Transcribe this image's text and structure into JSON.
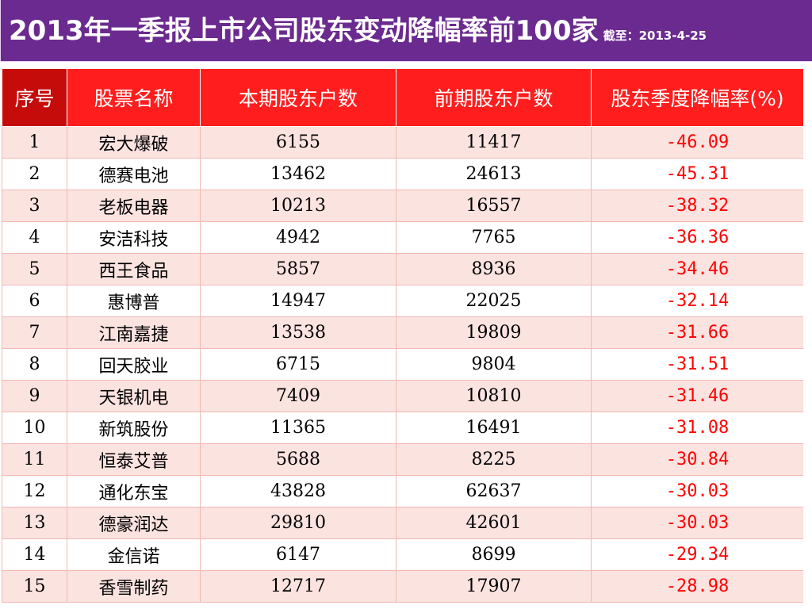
{
  "header": {
    "title": "2013年一季报上市公司股东变动降幅率前100家",
    "subtitle": "截至：2013-4-25"
  },
  "table": {
    "columns": [
      "序号",
      "股票名称",
      "本期股东户数",
      "前期股东户数",
      "股东季度降幅率(%)"
    ],
    "rows": [
      {
        "index": "1",
        "name": "宏大爆破",
        "current": "6155",
        "previous": "11417",
        "rate": "-46.09"
      },
      {
        "index": "2",
        "name": "德赛电池",
        "current": "13462",
        "previous": "24613",
        "rate": "-45.31"
      },
      {
        "index": "3",
        "name": "老板电器",
        "current": "10213",
        "previous": "16557",
        "rate": "-38.32"
      },
      {
        "index": "4",
        "name": "安洁科技",
        "current": "4942",
        "previous": "7765",
        "rate": "-36.36"
      },
      {
        "index": "5",
        "name": "西王食品",
        "current": "5857",
        "previous": "8936",
        "rate": "-34.46"
      },
      {
        "index": "6",
        "name": "惠博普",
        "current": "14947",
        "previous": "22025",
        "rate": "-32.14"
      },
      {
        "index": "7",
        "name": "江南嘉捷",
        "current": "13538",
        "previous": "19809",
        "rate": "-31.66"
      },
      {
        "index": "8",
        "name": "回天胶业",
        "current": "6715",
        "previous": "9804",
        "rate": "-31.51"
      },
      {
        "index": "9",
        "name": "天银机电",
        "current": "7409",
        "previous": "10810",
        "rate": "-31.46"
      },
      {
        "index": "10",
        "name": "新筑股份",
        "current": "11365",
        "previous": "16491",
        "rate": "-31.08"
      },
      {
        "index": "11",
        "name": "恒泰艾普",
        "current": "5688",
        "previous": "8225",
        "rate": "-30.84"
      },
      {
        "index": "12",
        "name": "通化东宝",
        "current": "43828",
        "previous": "62637",
        "rate": "-30.03"
      },
      {
        "index": "13",
        "name": "德豪润达",
        "current": "29810",
        "previous": "42601",
        "rate": "-30.03"
      },
      {
        "index": "14",
        "name": "金信诺",
        "current": "6147",
        "previous": "8699",
        "rate": "-29.34"
      },
      {
        "index": "15",
        "name": "香雪制药",
        "current": "12717",
        "previous": "17907",
        "rate": "-28.98"
      }
    ]
  },
  "colors": {
    "header_bg": "#6b2a8f",
    "table_header_bg": "#ff1d1d",
    "table_header_first_bg": "#c60b0b",
    "row_alt_bg": "#fbe3e0",
    "rate_text": "#ff0000"
  }
}
